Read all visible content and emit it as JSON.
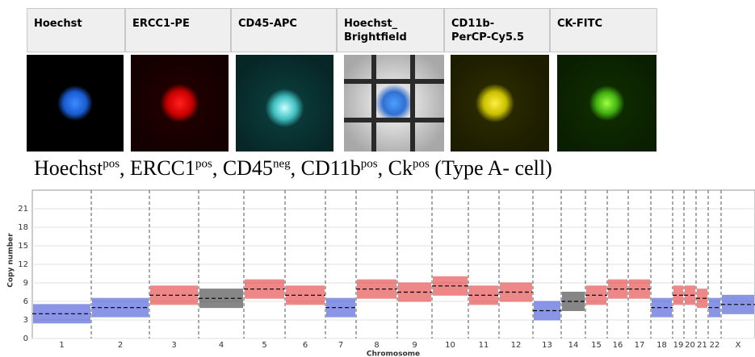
{
  "panels": [
    {
      "label": "Hoechst"
    },
    {
      "label": "ERCC1-PE"
    },
    {
      "label": "CD45-APC"
    },
    {
      "label": "Hoechst_\nBrightfield"
    },
    {
      "label": "CD11b-\nPerCP-Cy5.5"
    },
    {
      "label": "CK-FITC"
    }
  ],
  "caption": [
    {
      "text": "Hoechst",
      "sup": "pos"
    },
    {
      "text": ", ERCC1",
      "sup": "pos"
    },
    {
      "text": ", CD45",
      "sup": "neg"
    },
    {
      "text": ", CD11b",
      "sup": "pos"
    },
    {
      "text": ", Ck",
      "sup": "pos"
    },
    {
      "text": " (Type A- cell)"
    }
  ],
  "chart_data": {
    "type": "segments",
    "ylabel": "Copy number",
    "xlabel": "Chromosome",
    "categories": [
      "1",
      "2",
      "3",
      "4",
      "5",
      "6",
      "7",
      "8",
      "9",
      "10",
      "11",
      "12",
      "13",
      "14",
      "15",
      "16",
      "17",
      "18",
      "19",
      "20",
      "21",
      "22",
      "X"
    ],
    "values": [
      4,
      5,
      7,
      6.5,
      8,
      7,
      5,
      8,
      7.5,
      8.5,
      7,
      7.5,
      4.5,
      6,
      7,
      8,
      8,
      5,
      7,
      7,
      6.5,
      5,
      5.5
    ],
    "colors": [
      "#2a3fd0",
      "#2a3fd0",
      "#e02424",
      "#222222",
      "#e02424",
      "#e02424",
      "#2a3fd0",
      "#e02424",
      "#e02424",
      "#e02424",
      "#e02424",
      "#e02424",
      "#2a3fd0",
      "#222222",
      "#e02424",
      "#e02424",
      "#e02424",
      "#2a3fd0",
      "#e02424",
      "#e02424",
      "#e02424",
      "#2a3fd0",
      "#2a3fd0"
    ],
    "ylim": [
      0,
      24
    ],
    "yticks": [
      0,
      3,
      6,
      9,
      12,
      15,
      18,
      21
    ],
    "grid": true
  }
}
